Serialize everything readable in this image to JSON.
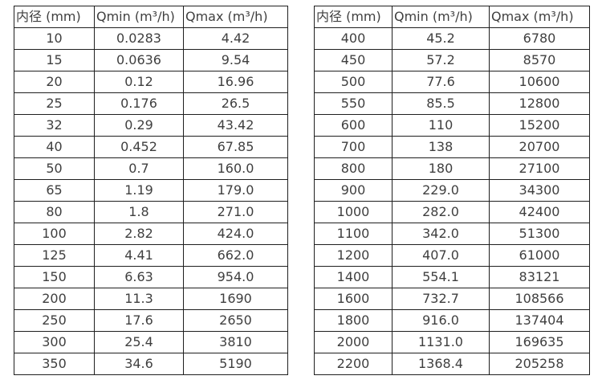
{
  "colors": {
    "background": "#ffffff",
    "border": "#1f1f1f",
    "text": "#3f3f3f"
  },
  "tables": [
    {
      "id": "diameter-flow-table-small",
      "headers": [
        "内径 (mm)",
        "Qmin (m³/h)",
        "Qmax (m³/h)"
      ],
      "rows": [
        [
          "10",
          "0.0283",
          "4.42"
        ],
        [
          "15",
          "0.0636",
          "9.54"
        ],
        [
          "20",
          "0.12",
          "16.96"
        ],
        [
          "25",
          "0.176",
          "26.5"
        ],
        [
          "32",
          "0.29",
          "43.42"
        ],
        [
          "40",
          "0.452",
          "67.85"
        ],
        [
          "50",
          "0.7",
          "160.0"
        ],
        [
          "65",
          "1.19",
          "179.0"
        ],
        [
          "80",
          "1.8",
          "271.0"
        ],
        [
          "100",
          "2.82",
          "424.0"
        ],
        [
          "125",
          "4.41",
          "662.0"
        ],
        [
          "150",
          "6.63",
          "954.0"
        ],
        [
          "200",
          "11.3",
          "1690"
        ],
        [
          "250",
          "17.6",
          "2650"
        ],
        [
          "300",
          "25.4",
          "3810"
        ],
        [
          "350",
          "34.6",
          "5190"
        ]
      ]
    },
    {
      "id": "diameter-flow-table-large",
      "headers": [
        "内径 (mm)",
        "Qmin (m³/h)",
        "Qmax (m³/h)"
      ],
      "rows": [
        [
          "400",
          "45.2",
          "6780"
        ],
        [
          "450",
          "57.2",
          "8570"
        ],
        [
          "500",
          "77.6",
          "10600"
        ],
        [
          "550",
          "85.5",
          "12800"
        ],
        [
          "600",
          "110",
          "15200"
        ],
        [
          "700",
          "138",
          "20700"
        ],
        [
          "800",
          "180",
          "27100"
        ],
        [
          "900",
          "229.0",
          "34300"
        ],
        [
          "1000",
          "282.0",
          "42400"
        ],
        [
          "1100",
          "342.0",
          "51300"
        ],
        [
          "1200",
          "407.0",
          "61000"
        ],
        [
          "1400",
          "554.1",
          "83121"
        ],
        [
          "1600",
          "732.7",
          "108566"
        ],
        [
          "1800",
          "916.0",
          "137404"
        ],
        [
          "2000",
          "1131.0",
          "169635"
        ],
        [
          "2200",
          "1368.4",
          "205258"
        ]
      ]
    }
  ]
}
